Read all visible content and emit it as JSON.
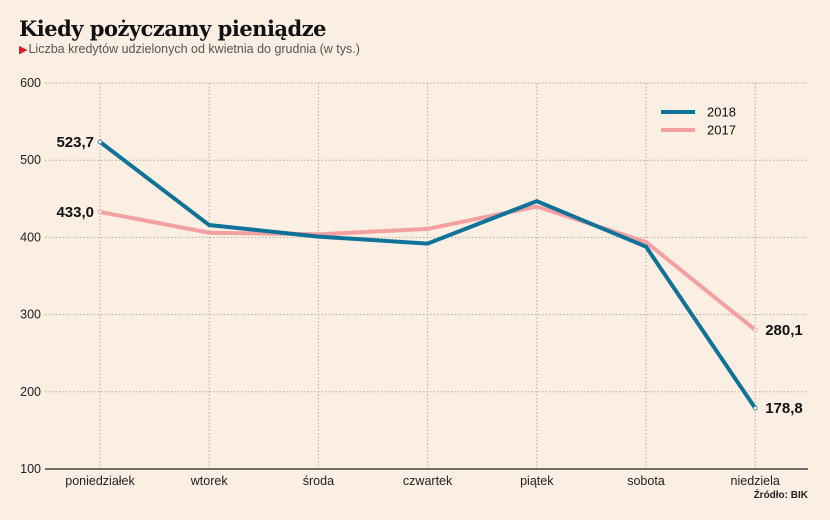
{
  "chart_data": {
    "type": "line",
    "title": "Kiedy pożyczamy pieniądze",
    "subtitle": "Liczba kredytów udzielonych od kwietnia do grudnia (w tys.)",
    "categories": [
      "poniedziałek",
      "wtorek",
      "środa",
      "czwartek",
      "piątek",
      "sobota",
      "niedziela"
    ],
    "series": [
      {
        "name": "2018",
        "color": "#0f7399",
        "values": [
          523.7,
          416,
          401,
          392,
          447,
          388,
          178.8
        ]
      },
      {
        "name": "2017",
        "color": "#f4a0a0",
        "values": [
          433.0,
          406,
          404,
          411,
          440,
          394,
          280.1
        ]
      }
    ],
    "data_labels": [
      {
        "series": "2018",
        "index": 0,
        "text": "523,7"
      },
      {
        "series": "2017",
        "index": 0,
        "text": "433,0"
      },
      {
        "series": "2017",
        "index": 6,
        "text": "280,1"
      },
      {
        "series": "2018",
        "index": 6,
        "text": "178,8"
      }
    ],
    "yticks": [
      100,
      200,
      300,
      400,
      500,
      600
    ],
    "ylim": [
      100,
      600
    ],
    "xlabel": "",
    "ylabel": "",
    "grid": true,
    "legend_position": "top-right",
    "source": "Źródło: BIK"
  }
}
